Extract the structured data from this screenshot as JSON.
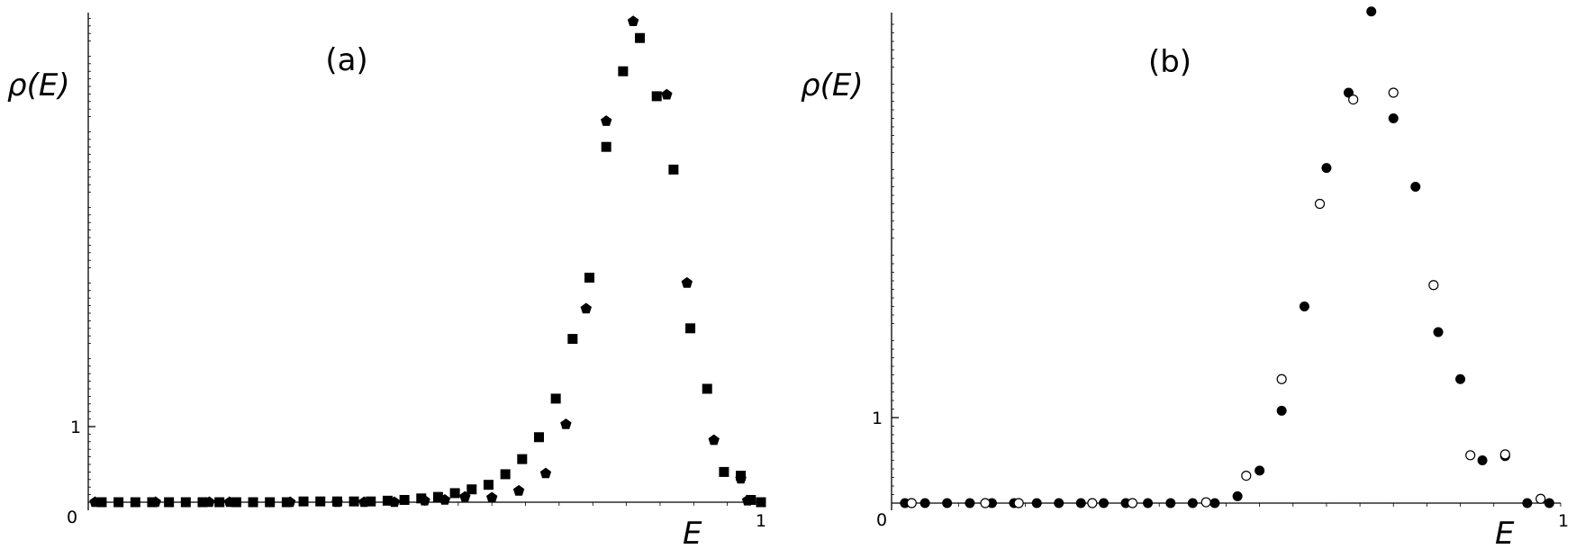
{
  "chart_data": [
    {
      "type": "scatter",
      "panel_label": "(a)",
      "ylabel": "ρ(E)",
      "xlabel": "E",
      "xlim": [
        0,
        1
      ],
      "ylim": [
        0,
        6.5
      ],
      "x_tick_labels": {
        "start": "0",
        "end": "1"
      },
      "y_tick_labels": [
        {
          "value": 1,
          "label": "1"
        }
      ],
      "grid": false,
      "series": [
        {
          "marker": "square-filled",
          "points": [
            [
              0.02,
              0.0
            ],
            [
              0.045,
              0.0
            ],
            [
              0.07,
              0.0
            ],
            [
              0.095,
              0.0
            ],
            [
              0.12,
              0.0
            ],
            [
              0.145,
              0.0
            ],
            [
              0.17,
              0.0
            ],
            [
              0.195,
              0.0
            ],
            [
              0.22,
              0.0
            ],
            [
              0.245,
              0.0
            ],
            [
              0.27,
              0.0
            ],
            [
              0.295,
              0.0
            ],
            [
              0.32,
              0.01
            ],
            [
              0.345,
              0.01
            ],
            [
              0.37,
              0.01
            ],
            [
              0.395,
              0.01
            ],
            [
              0.42,
              0.01
            ],
            [
              0.445,
              0.02
            ],
            [
              0.47,
              0.03
            ],
            [
              0.495,
              0.05
            ],
            [
              0.52,
              0.07
            ],
            [
              0.545,
              0.12
            ],
            [
              0.57,
              0.17
            ],
            [
              0.595,
              0.23
            ],
            [
              0.62,
              0.37
            ],
            [
              0.645,
              0.57
            ],
            [
              0.67,
              0.86
            ],
            [
              0.695,
              1.37
            ],
            [
              0.72,
              2.16
            ],
            [
              0.745,
              2.97
            ],
            [
              0.77,
              4.7
            ],
            [
              0.795,
              5.7
            ],
            [
              0.82,
              6.14
            ],
            [
              0.845,
              5.37
            ],
            [
              0.87,
              4.4
            ],
            [
              0.895,
              2.3
            ],
            [
              0.92,
              1.5
            ],
            [
              0.945,
              0.4
            ],
            [
              0.97,
              0.35
            ],
            [
              0.985,
              0.03
            ],
            [
              1.0,
              0.0
            ]
          ]
        },
        {
          "marker": "pentagon-filled",
          "points": [
            [
              0.01,
              0.0
            ],
            [
              0.1,
              0.0
            ],
            [
              0.18,
              0.0
            ],
            [
              0.21,
              0.0
            ],
            [
              0.3,
              0.0
            ],
            [
              0.37,
              0.0
            ],
            [
              0.41,
              0.0
            ],
            [
              0.455,
              0.0
            ],
            [
              0.5,
              0.02
            ],
            [
              0.53,
              0.03
            ],
            [
              0.56,
              0.07
            ],
            [
              0.6,
              0.06
            ],
            [
              0.64,
              0.15
            ],
            [
              0.68,
              0.38
            ],
            [
              0.71,
              1.03
            ],
            [
              0.74,
              2.56
            ],
            [
              0.77,
              5.04
            ],
            [
              0.81,
              6.36
            ],
            [
              0.86,
              5.39
            ],
            [
              0.89,
              2.9
            ],
            [
              0.93,
              0.82
            ],
            [
              0.97,
              0.31
            ],
            [
              0.98,
              0.02
            ]
          ]
        }
      ]
    },
    {
      "type": "scatter",
      "panel_label": "(b)",
      "ylabel": "ρ(E)",
      "xlabel": "E",
      "xlim": [
        0,
        1
      ],
      "ylim": [
        0,
        6.5
      ],
      "x_tick_labels": {
        "start": "0",
        "end": "1"
      },
      "y_tick_labels": [
        {
          "value": 1,
          "label": "1"
        }
      ],
      "grid": false,
      "series": [
        {
          "marker": "circle-filled",
          "points": [
            [
              0.02,
              0.0
            ],
            [
              0.05,
              0.0
            ],
            [
              0.083,
              0.0
            ],
            [
              0.117,
              0.0
            ],
            [
              0.15,
              0.0
            ],
            [
              0.183,
              0.0
            ],
            [
              0.217,
              0.0
            ],
            [
              0.25,
              0.0
            ],
            [
              0.283,
              0.0
            ],
            [
              0.317,
              0.0
            ],
            [
              0.35,
              0.0
            ],
            [
              0.383,
              0.0
            ],
            [
              0.417,
              0.0
            ],
            [
              0.45,
              0.0
            ],
            [
              0.483,
              0.0
            ],
            [
              0.517,
              0.08
            ],
            [
              0.55,
              0.38
            ],
            [
              0.583,
              1.08
            ],
            [
              0.617,
              2.3
            ],
            [
              0.65,
              3.92
            ],
            [
              0.683,
              4.8
            ],
            [
              0.717,
              5.75
            ],
            [
              0.75,
              4.5
            ],
            [
              0.783,
              3.7
            ],
            [
              0.817,
              2.0
            ],
            [
              0.85,
              1.45
            ],
            [
              0.883,
              0.5
            ],
            [
              0.917,
              0.55
            ],
            [
              0.95,
              0.0
            ],
            [
              0.983,
              0.0
            ]
          ]
        },
        {
          "marker": "circle-open",
          "points": [
            [
              0.03,
              0.0
            ],
            [
              0.14,
              0.0
            ],
            [
              0.19,
              0.0
            ],
            [
              0.3,
              0.0
            ],
            [
              0.36,
              0.0
            ],
            [
              0.47,
              0.01
            ],
            [
              0.53,
              0.32
            ],
            [
              0.583,
              1.45
            ],
            [
              0.64,
              3.5
            ],
            [
              0.69,
              4.72
            ],
            [
              0.75,
              4.8
            ],
            [
              0.81,
              2.55
            ],
            [
              0.865,
              0.56
            ],
            [
              0.917,
              0.57
            ],
            [
              0.97,
              0.05
            ]
          ]
        }
      ]
    }
  ]
}
